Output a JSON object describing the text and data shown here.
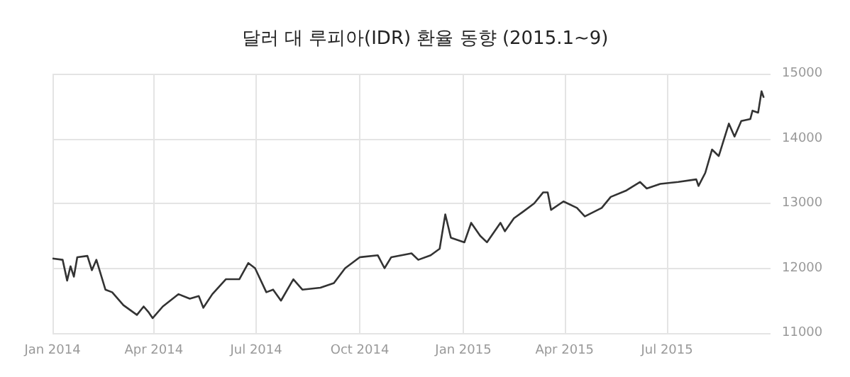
{
  "chart_data": {
    "type": "line",
    "title": "달러 대 루피아(IDR) 환율 동향 (2015.1~9)",
    "x": [
      "2014-01-01",
      "2014-01-10",
      "2014-01-14",
      "2014-01-17",
      "2014-01-20",
      "2014-01-23",
      "2014-02-01",
      "2014-02-05",
      "2014-02-09",
      "2014-02-17",
      "2014-02-23",
      "2014-03-05",
      "2014-03-17",
      "2014-03-23",
      "2014-03-27",
      "2014-03-31",
      "2014-04-09",
      "2014-04-23",
      "2014-05-03",
      "2014-05-11",
      "2014-05-15",
      "2014-05-23",
      "2014-06-04",
      "2014-06-16",
      "2014-06-24",
      "2014-06-30",
      "2014-07-10",
      "2014-07-16",
      "2014-07-23",
      "2014-08-03",
      "2014-08-11",
      "2014-08-27",
      "2014-09-08",
      "2014-09-18",
      "2014-10-01",
      "2014-10-17",
      "2014-10-23",
      "2014-10-29",
      "2014-11-16",
      "2014-11-22",
      "2014-12-03",
      "2014-12-11",
      "2014-12-16",
      "2014-12-21",
      "2015-01-02",
      "2015-01-08",
      "2015-01-16",
      "2015-01-22",
      "2015-02-03",
      "2015-02-07",
      "2015-02-15",
      "2015-02-23",
      "2015-03-05",
      "2015-03-13",
      "2015-03-17",
      "2015-03-20",
      "2015-03-31",
      "2015-04-12",
      "2015-04-19",
      "2015-05-04",
      "2015-05-12",
      "2015-05-26",
      "2015-06-07",
      "2015-06-13",
      "2015-06-25",
      "2015-07-11",
      "2015-07-27",
      "2015-07-29",
      "2015-08-04",
      "2015-08-10",
      "2015-08-16",
      "2015-08-25",
      "2015-08-30",
      "2015-09-05",
      "2015-09-13",
      "2015-09-15",
      "2015-09-20",
      "2015-09-23",
      "2015-09-25"
    ],
    "series": [
      {
        "color": "#333333",
        "values": [
          12150,
          12130,
          11810,
          12030,
          11870,
          12170,
          12190,
          11970,
          12130,
          11670,
          11630,
          11430,
          11280,
          11410,
          11330,
          11230,
          11410,
          11600,
          11530,
          11570,
          11390,
          11600,
          11830,
          11830,
          12080,
          12000,
          11630,
          11670,
          11500,
          11830,
          11670,
          11700,
          11770,
          12000,
          12170,
          12200,
          12000,
          12170,
          12230,
          12130,
          12200,
          12300,
          12830,
          12470,
          12400,
          12700,
          12500,
          12400,
          12700,
          12570,
          12770,
          12870,
          13000,
          13170,
          13170,
          12900,
          13030,
          12930,
          12800,
          12930,
          13100,
          13200,
          13330,
          13230,
          13300,
          13330,
          13370,
          13270,
          13470,
          13830,
          13730,
          14230,
          14030,
          14270,
          14300,
          14430,
          14400,
          14730,
          14630
        ]
      }
    ],
    "xlim": [
      "2014-01-01",
      "2015-10-01"
    ],
    "xticks": [
      {
        "value": "2014-01-01",
        "label": "Jan 2014"
      },
      {
        "value": "2014-04-01",
        "label": "Apr 2014"
      },
      {
        "value": "2014-07-01",
        "label": "Jul 2014"
      },
      {
        "value": "2014-10-01",
        "label": "Oct 2014"
      },
      {
        "value": "2015-01-01",
        "label": "Jan 2015"
      },
      {
        "value": "2015-04-01",
        "label": "Apr 2015"
      },
      {
        "value": "2015-07-01",
        "label": "Jul 2015"
      }
    ],
    "ylim": [
      11000,
      15000
    ],
    "yticks": [
      11000,
      12000,
      13000,
      14000,
      15000
    ],
    "grid": true,
    "marker": "none",
    "line_style": "solid"
  }
}
